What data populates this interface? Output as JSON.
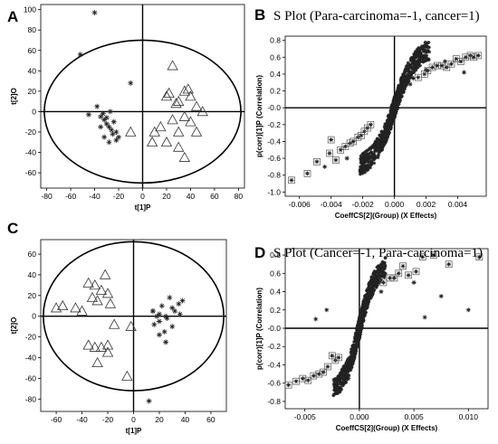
{
  "chart_data": [
    {
      "panel": "A",
      "type": "scatter",
      "title": "",
      "xlabel": "t[1]P",
      "ylabel": "t[2]O",
      "xlim": [
        -85,
        85
      ],
      "ylim": [
        -75,
        105
      ],
      "xticks": [
        -80,
        -60,
        -40,
        -20,
        0,
        20,
        40,
        60,
        80
      ],
      "yticks": [
        -60,
        -40,
        -20,
        0,
        20,
        40,
        60,
        80,
        100
      ],
      "ellipse": {
        "cx": 0,
        "cy": 0,
        "rx": 82,
        "ry": 70
      },
      "grid": false,
      "series": [
        {
          "marker": "asterisk",
          "x": [
            -40,
            -52,
            -45,
            -38,
            -35,
            -32,
            -30,
            -28,
            -26,
            -24,
            -22,
            -20,
            -32,
            -28,
            -25,
            -33,
            -27,
            -30,
            -22,
            -35,
            -10
          ],
          "y": [
            97,
            56,
            -3,
            5,
            -5,
            -8,
            -12,
            -15,
            -18,
            -10,
            -20,
            -25,
            -25,
            -30,
            -22,
            -2,
            0,
            -6,
            -28,
            -15,
            28
          ]
        },
        {
          "marker": "triangle",
          "x": [
            25,
            20,
            22,
            35,
            38,
            40,
            30,
            28,
            45,
            50,
            35,
            25,
            40,
            45,
            30,
            15,
            10,
            8,
            30,
            20,
            35,
            -10
          ],
          "y": [
            45,
            15,
            18,
            20,
            22,
            15,
            10,
            8,
            5,
            0,
            -5,
            -8,
            -10,
            -20,
            -20,
            -15,
            -20,
            -30,
            -35,
            -30,
            -45,
            -20
          ]
        }
      ]
    },
    {
      "panel": "B",
      "type": "scatter",
      "title": "S Plot (Para-carcinoma=-1, cancer=1)",
      "xlabel": "CoeffCS[2](Group) (X Effects)",
      "ylabel": "p(corr)[1]P (Correlation)",
      "xlim": [
        -0.0069,
        0.0058
      ],
      "ylim": [
        -1.05,
        0.85
      ],
      "xticks": [
        -0.006,
        -0.004,
        -0.002,
        0.0,
        0.002,
        0.004
      ],
      "xtick_labels": [
        "-0.006",
        "-0.004",
        "-0.002",
        "0.000",
        "0.002",
        "0.004"
      ],
      "yticks": [
        -1.0,
        -0.8,
        -0.6,
        -0.4,
        -0.2,
        0.0,
        0.2,
        0.4,
        0.6,
        0.8
      ],
      "ytick_labels": [
        "-1.0",
        "-0.8",
        "-0.6",
        "-0.4",
        "-0.2",
        "-0.0",
        "0.2",
        "0.4",
        "0.6",
        "0.8"
      ],
      "grid": false,
      "s_curve": {
        "a": 0.63,
        "b": 0.0011,
        "spread": 0.12,
        "count": 900
      },
      "boxed_points": {
        "x": [
          -0.0065,
          -0.0055,
          -0.0049,
          -0.0041,
          -0.004,
          -0.0037,
          -0.0034,
          -0.0031,
          -0.0028,
          -0.0026,
          -0.0023,
          -0.0021,
          -0.0019,
          -0.0017,
          -0.0015,
          0.0015,
          0.0019,
          0.0021,
          0.0024,
          0.0027,
          0.003,
          0.0033,
          0.0036,
          0.0039,
          0.0042,
          0.0045,
          0.0048,
          0.005,
          0.0053
        ],
        "y": [
          -0.86,
          -0.78,
          -0.64,
          -0.54,
          -0.38,
          -0.62,
          -0.5,
          -0.46,
          -0.42,
          -0.4,
          -0.35,
          -0.33,
          -0.28,
          -0.24,
          -0.2,
          0.36,
          0.4,
          0.44,
          0.48,
          0.5,
          0.5,
          0.48,
          0.52,
          0.58,
          0.55,
          0.6,
          0.62,
          0.6,
          0.62
        ]
      },
      "outlier_points": {
        "x": [
          -0.0044,
          -0.003,
          -0.002,
          -0.0012,
          0.001,
          0.0012,
          0.002,
          0.0032,
          0.0044
        ],
        "y": [
          -0.7,
          -0.6,
          -0.55,
          -0.42,
          0.28,
          0.35,
          0.45,
          0.55,
          0.42
        ]
      }
    },
    {
      "panel": "C",
      "type": "scatter",
      "title": "",
      "xlabel": "t[1]P",
      "ylabel": "t[2]O",
      "xlim": [
        -72,
        72
      ],
      "ylim": [
        -92,
        74
      ],
      "xticks": [
        -60,
        -40,
        -20,
        0,
        20,
        40,
        60
      ],
      "yticks": [
        -80,
        -60,
        -40,
        -20,
        0,
        20,
        40,
        60
      ],
      "ellipse": {
        "cx": 0,
        "cy": 0,
        "rx": 70,
        "ry": 72
      },
      "grid": false,
      "series": [
        {
          "marker": "triangle",
          "x": [
            -35,
            -30,
            -22,
            -25,
            -20,
            -32,
            -28,
            -18,
            -40,
            -45,
            -55,
            -60,
            -15,
            -20,
            -25,
            -35,
            -30,
            -20,
            -28,
            -5,
            -2
          ],
          "y": [
            32,
            30,
            40,
            25,
            22,
            18,
            15,
            12,
            5,
            8,
            10,
            8,
            -8,
            -28,
            -30,
            -28,
            -30,
            -35,
            -45,
            -58,
            -10
          ]
        },
        {
          "marker": "asterisk",
          "x": [
            15,
            20,
            25,
            30,
            35,
            38,
            28,
            22,
            18,
            32,
            26,
            20,
            16,
            24,
            36,
            30,
            20,
            25,
            12,
            15
          ],
          "y": [
            5,
            2,
            0,
            8,
            12,
            15,
            18,
            10,
            0,
            5,
            -2,
            -5,
            -8,
            -15,
            2,
            -10,
            -18,
            -25,
            -82,
            5
          ]
        }
      ]
    },
    {
      "panel": "D",
      "type": "scatter",
      "title": "S Plot (Cancer=-1, Para-carcinoma=1)",
      "xlabel": "CoeffCS[2](Group) (X Effects)",
      "ylabel": "p(corr)[1]P (Correlation)",
      "xlim": [
        -0.0068,
        0.0118
      ],
      "ylim": [
        -0.88,
        0.87
      ],
      "xticks": [
        -0.005,
        0.0,
        0.005,
        0.01
      ],
      "xtick_labels": [
        "-0.005",
        "0.000",
        "0.005",
        "0.010"
      ],
      "yticks": [
        -0.8,
        -0.6,
        -0.4,
        -0.2,
        0.0,
        0.2,
        0.4,
        0.6,
        0.8
      ],
      "ytick_labels": [
        "-0.8",
        "-0.6",
        "-0.4",
        "-0.2",
        "-0.0",
        "0.2",
        "0.4",
        "0.6",
        "0.8"
      ],
      "grid": false,
      "s_curve": {
        "a": 0.6,
        "b": 0.0012,
        "spread": 0.11,
        "count": 850
      },
      "boxed_points": {
        "x": [
          -0.0065,
          -0.0058,
          -0.0052,
          -0.0047,
          -0.0042,
          -0.0037,
          -0.0033,
          -0.0029,
          -0.0025,
          -0.0022,
          -0.0019,
          0.0022,
          0.0028,
          0.0032,
          0.0036,
          0.004,
          0.0045,
          0.0052,
          0.0058,
          0.0068,
          0.0082,
          0.011
        ],
        "y": [
          -0.62,
          -0.58,
          -0.55,
          -0.57,
          -0.52,
          -0.5,
          -0.48,
          -0.42,
          -0.3,
          -0.35,
          -0.32,
          0.5,
          0.55,
          0.55,
          0.6,
          0.68,
          0.58,
          0.62,
          0.78,
          0.8,
          0.7,
          0.78
        ]
      },
      "outlier_points": {
        "x": [
          -0.004,
          -0.003,
          -0.001,
          0.001,
          0.002,
          0.005,
          0.006,
          0.0075,
          0.01
        ],
        "y": [
          0.1,
          0.2,
          -0.55,
          0.4,
          0.4,
          0.5,
          0.12,
          0.35,
          0.2
        ]
      }
    }
  ]
}
